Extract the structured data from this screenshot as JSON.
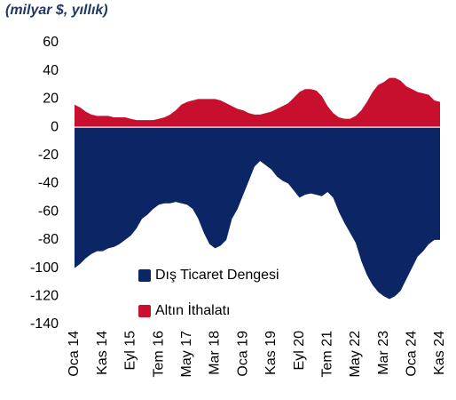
{
  "chart_data": {
    "type": "area",
    "title": "(milyar $, yıllık)",
    "categories": [
      "Oca 14",
      null,
      null,
      null,
      null,
      "Kas 14",
      null,
      null,
      null,
      null,
      "Eyl 15",
      null,
      null,
      null,
      null,
      "Tem 16",
      null,
      null,
      null,
      null,
      "May 17",
      null,
      null,
      null,
      null,
      "Mar 18",
      null,
      null,
      null,
      null,
      "Oca 19",
      null,
      null,
      null,
      null,
      "Kas 19",
      null,
      null,
      null,
      null,
      "Eyl 20",
      null,
      null,
      null,
      null,
      "Tem 21",
      null,
      null,
      null,
      null,
      "May 22",
      null,
      null,
      null,
      null,
      "Mar 23",
      null,
      null,
      null,
      null,
      "Oca 24",
      null,
      null,
      null,
      null,
      "Kas 24"
    ],
    "series": [
      {
        "name": "Dış Ticaret Dengesi",
        "color": "#0b2565",
        "values": [
          -100,
          -97,
          -93,
          -90,
          -88,
          -88,
          -86,
          -85,
          -83,
          -80,
          -77,
          -72,
          -65,
          -62,
          -58,
          -55,
          -54,
          -54,
          -53,
          -54,
          -55,
          -58,
          -65,
          -75,
          -83,
          -86,
          -84,
          -80,
          -65,
          -58,
          -48,
          -38,
          -28,
          -24,
          -27,
          -30,
          -35,
          -38,
          -40,
          -45,
          -50,
          -48,
          -47,
          -48,
          -49,
          -46,
          -50,
          -60,
          -68,
          -75,
          -82,
          -95,
          -105,
          -112,
          -117,
          -120,
          -122,
          -120,
          -116,
          -108,
          -100,
          -92,
          -88,
          -83,
          -80,
          -80
        ]
      },
      {
        "name": "Altın İthalatı",
        "color": "#c8102e",
        "values": [
          16,
          14,
          11,
          9,
          8,
          8,
          8,
          7,
          7,
          7,
          6,
          5,
          5,
          5,
          5,
          6,
          7,
          9,
          12,
          16,
          18,
          19,
          20,
          20,
          20,
          20,
          19,
          17,
          15,
          13,
          12,
          10,
          9,
          9,
          10,
          11,
          13,
          15,
          17,
          21,
          25,
          27,
          27,
          26,
          22,
          15,
          10,
          7,
          6,
          6,
          8,
          12,
          18,
          25,
          30,
          32,
          35,
          35,
          33,
          29,
          27,
          25,
          24,
          23,
          19,
          18
        ]
      }
    ],
    "ylim": [
      -140,
      60
    ],
    "yticks": [
      -140,
      -120,
      -100,
      -80,
      -60,
      -40,
      -20,
      0,
      20,
      40,
      60
    ]
  }
}
